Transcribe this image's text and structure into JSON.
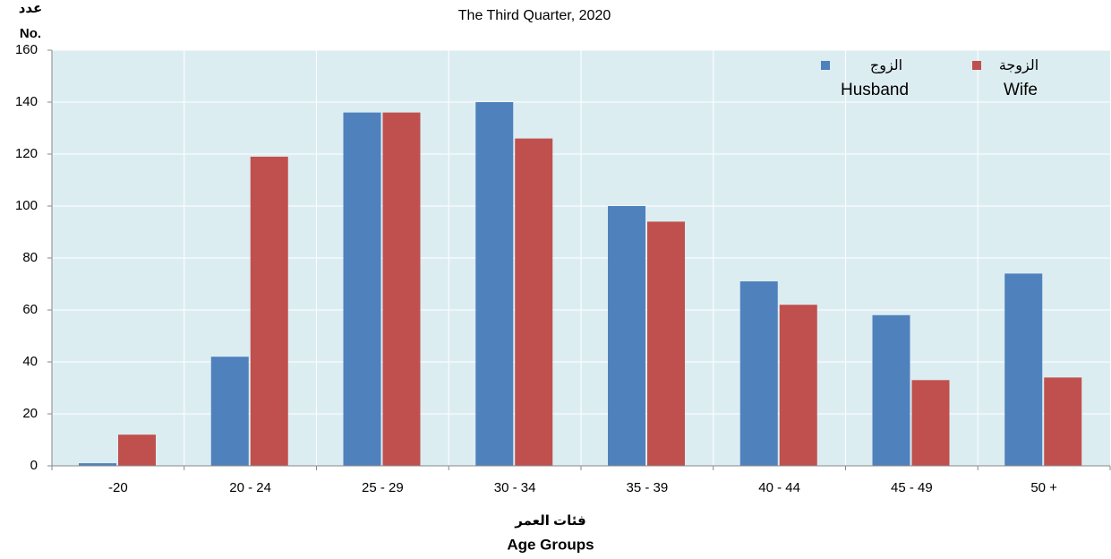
{
  "chart_data": {
    "type": "bar",
    "title": "The Third Quarter, 2020",
    "y_label_ar": "عدد",
    "y_label": "No.",
    "x_label_ar": "فئات العمر",
    "x_label": "Age Groups",
    "categories": [
      "-20",
      "20 - 24",
      "25 - 29",
      "30 - 34",
      "35 - 39",
      "40 - 44",
      "45 - 49",
      "50 +"
    ],
    "series": [
      {
        "name": "Husband",
        "name_ar": "الزوج",
        "color": "#4f81bd",
        "values": [
          1,
          42,
          136,
          140,
          100,
          71,
          58,
          74
        ]
      },
      {
        "name": "Wife",
        "name_ar": "الزوجة",
        "color": "#c0504d",
        "values": [
          12,
          119,
          136,
          126,
          94,
          62,
          33,
          34
        ]
      }
    ],
    "ylim": [
      0,
      160
    ],
    "yticks": [
      0,
      20,
      40,
      60,
      80,
      100,
      120,
      140,
      160
    ],
    "grid": true,
    "legend": "upper right"
  }
}
